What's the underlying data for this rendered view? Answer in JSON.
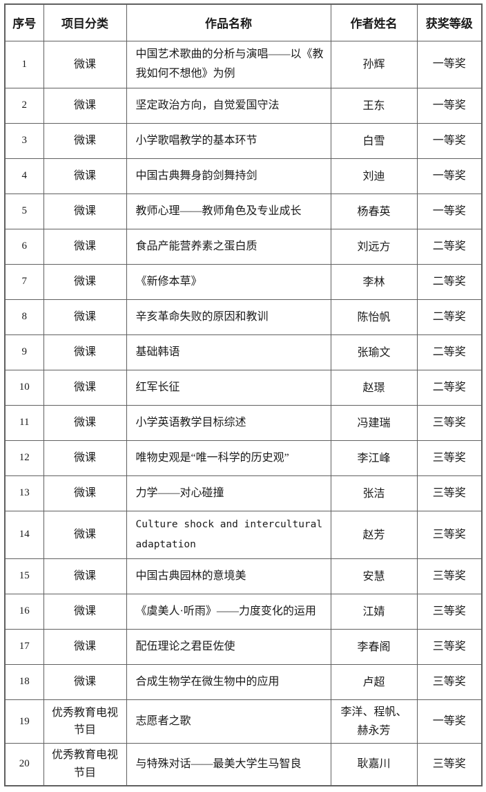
{
  "page": {
    "background_color": "#ffffff",
    "text_color": "#1a1a1a",
    "border_color": "#5f5f5f"
  },
  "table": {
    "headers": [
      "序号",
      "项目分类",
      "作品名称",
      "作者姓名",
      "获奖等级"
    ],
    "rows": [
      {
        "num": "1",
        "category": "微课",
        "title": "中国艺术歌曲的分析与演唱——以《教我如何不想他》为例",
        "author": "孙辉",
        "award": "一等奖"
      },
      {
        "num": "2",
        "category": "微课",
        "title": "坚定政治方向，自觉爱国守法",
        "author": "王东",
        "award": "一等奖"
      },
      {
        "num": "3",
        "category": "微课",
        "title": "小学歌唱教学的基本环节",
        "author": "白雪",
        "award": "一等奖"
      },
      {
        "num": "4",
        "category": "微课",
        "title": "中国古典舞身韵剑舞持剑",
        "author": "刘迪",
        "award": "一等奖"
      },
      {
        "num": "5",
        "category": "微课",
        "title": "教师心理——教师角色及专业成长",
        "author": "杨春英",
        "award": "一等奖"
      },
      {
        "num": "6",
        "category": "微课",
        "title": "食品产能营养素之蛋白质",
        "author": "刘远方",
        "award": "二等奖"
      },
      {
        "num": "7",
        "category": "微课",
        "title": "《新修本草》",
        "author": "李林",
        "award": "二等奖"
      },
      {
        "num": "8",
        "category": "微课",
        "title": "辛亥革命失败的原因和教训",
        "author": "陈怡帆",
        "award": "二等奖"
      },
      {
        "num": "9",
        "category": "微课",
        "title": "基础韩语",
        "author": "张瑜文",
        "award": "二等奖"
      },
      {
        "num": "10",
        "category": "微课",
        "title": "红军长征",
        "author": "赵璟",
        "award": "二等奖"
      },
      {
        "num": "11",
        "category": "微课",
        "title": "小学英语教学目标综述",
        "author": "冯建瑞",
        "award": "三等奖"
      },
      {
        "num": "12",
        "category": "微课",
        "title": "唯物史观是“唯一科学的历史观”",
        "author": "李江峰",
        "award": "三等奖"
      },
      {
        "num": "13",
        "category": "微课",
        "title": "力学——对心碰撞",
        "author": "张洁",
        "award": "三等奖"
      },
      {
        "num": "14",
        "category": "微课",
        "title": "Culture shock and intercultural adaptation",
        "author": "赵芳",
        "award": "三等奖",
        "title_mono": true
      },
      {
        "num": "15",
        "category": "微课",
        "title": "中国古典园林的意境美",
        "author": "安慧",
        "award": "三等奖"
      },
      {
        "num": "16",
        "category": "微课",
        "title": "《虞美人·听雨》——力度变化的运用",
        "author": "江婧",
        "award": "三等奖"
      },
      {
        "num": "17",
        "category": "微课",
        "title": "配伍理论之君臣佐使",
        "author": "李春阁",
        "award": "三等奖"
      },
      {
        "num": "18",
        "category": "微课",
        "title": "合成生物学在微生物中的应用",
        "author": "卢超",
        "award": "三等奖"
      },
      {
        "num": "19",
        "category": "优秀教育电视节目",
        "title": "志愿者之歌",
        "author": "李洋、程帆、赫永芳",
        "award": "一等奖"
      },
      {
        "num": "20",
        "category": "优秀教育电视节目",
        "title": "与特殊对话——最美大学生马智良",
        "author": "耿嘉川",
        "award": "三等奖"
      }
    ]
  }
}
